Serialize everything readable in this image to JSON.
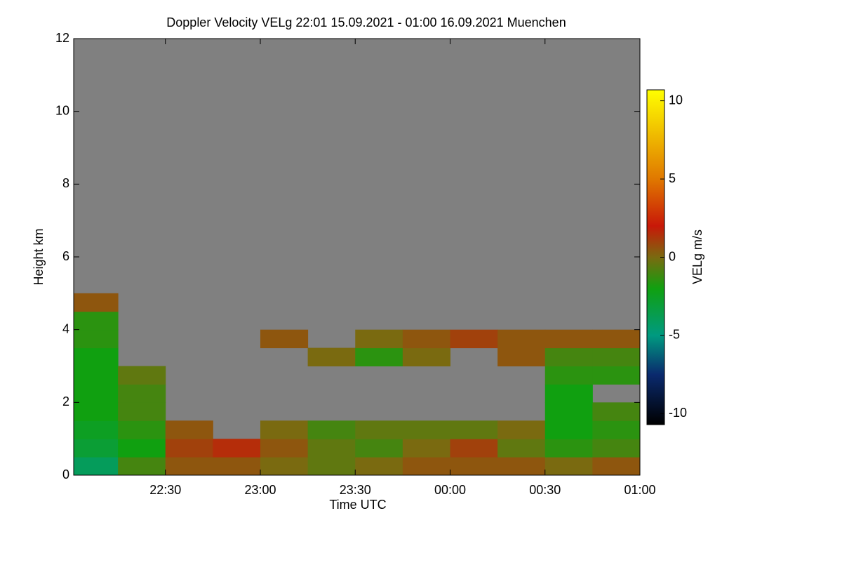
{
  "chart_data": {
    "type": "heatmap",
    "title": "Doppler Velocity VELg   22:01 15.09.2021 - 01:00 16.09.2021 Muenchen",
    "x_label": "Time UTC",
    "y_label": "Height km",
    "xlim": [
      22.0167,
      25
    ],
    "ylim": [
      0,
      12
    ],
    "xticks": [
      {
        "value": 22.5,
        "label": "22:30"
      },
      {
        "value": 23,
        "label": "23:00"
      },
      {
        "value": 23.5,
        "label": "23:30"
      },
      {
        "value": 24,
        "label": "00:00"
      },
      {
        "value": 24.5,
        "label": "00:30"
      },
      {
        "value": 25,
        "label": "01:00"
      }
    ],
    "yticks": [
      0,
      2,
      4,
      6,
      8,
      10,
      12
    ],
    "background": "#808080",
    "x_edges": [
      22.0167,
      22.25,
      22.5,
      22.75,
      23,
      23.25,
      23.5,
      23.75,
      24,
      24.25,
      24.5,
      24.75,
      25
    ],
    "y_edges": [
      0,
      0.5,
      1,
      1.5,
      2,
      2.5,
      3,
      3.5,
      4,
      4.5,
      5
    ],
    "z": [
      [
        -4,
        -1,
        0.5,
        0.5,
        0,
        -0.5,
        0,
        0.5,
        0.5,
        0.5,
        0,
        0.5
      ],
      [
        -3,
        -2,
        1,
        1.5,
        0.5,
        -0.5,
        -1,
        0,
        1,
        -0.5,
        -1.5,
        -1
      ],
      [
        -2.5,
        -1.5,
        0.5,
        null,
        0,
        -1,
        -0.5,
        -0.5,
        -0.5,
        0,
        -2,
        -1.5
      ],
      [
        -2,
        -1,
        null,
        null,
        null,
        null,
        null,
        null,
        null,
        null,
        -2,
        -1
      ],
      [
        -2,
        -1,
        null,
        null,
        null,
        null,
        null,
        null,
        null,
        null,
        -2,
        null
      ],
      [
        -2,
        -0.5,
        null,
        null,
        null,
        null,
        null,
        null,
        null,
        null,
        -1.5,
        -1.5
      ],
      [
        -2,
        null,
        null,
        null,
        null,
        0,
        -1.5,
        0,
        null,
        0.5,
        -1,
        -1
      ],
      [
        -1.5,
        null,
        null,
        null,
        0.5,
        null,
        0,
        0.5,
        1,
        0.5,
        0.5,
        0.5
      ],
      [
        -1.5,
        null,
        null,
        null,
        null,
        null,
        null,
        null,
        null,
        null,
        null,
        null
      ],
      [
        0.5,
        null,
        null,
        null,
        null,
        null,
        null,
        null,
        null,
        null,
        null,
        null
      ]
    ],
    "colorbar": {
      "label": "VELg m/s",
      "clim": [
        -10.7,
        10.7
      ],
      "ticks": [
        -10,
        -5,
        0,
        5,
        10
      ],
      "colormap": [
        {
          "value": -10.7,
          "color": "#000000"
        },
        {
          "value": -7.5,
          "color": "#0a2a6e"
        },
        {
          "value": -5,
          "color": "#009a80"
        },
        {
          "value": -2,
          "color": "#10a010"
        },
        {
          "value": 0,
          "color": "#7a6a10"
        },
        {
          "value": 2,
          "color": "#c81808"
        },
        {
          "value": 5,
          "color": "#e07800"
        },
        {
          "value": 10.7,
          "color": "#ffff00"
        }
      ]
    }
  }
}
